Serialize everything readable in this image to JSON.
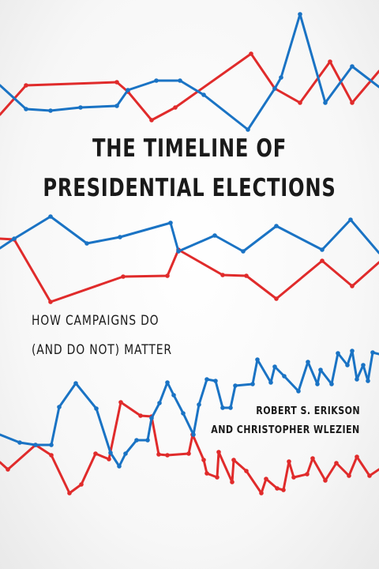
{
  "cover": {
    "title_line_1": "THE TIMELINE OF",
    "title_line_2": "PRESIDENTIAL ELECTIONS",
    "subtitle_line_1": "HOW CAMPAIGNS DO",
    "subtitle_line_2": "(AND DO NOT) MATTER",
    "author_1": "ROBERT S. ERIKSON",
    "author_2": "AND CHRISTOPHER WLEZIEN"
  },
  "colors": {
    "red_line": "#e02b2b",
    "blue_line": "#1a73c4",
    "text": "#1a1a1a"
  }
}
